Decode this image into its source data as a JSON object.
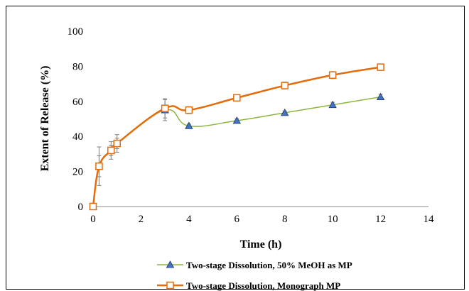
{
  "chart_data": {
    "type": "line",
    "xlabel": "Time (h)",
    "ylabel": "Extent of Release (%)",
    "xlim": [
      0,
      14
    ],
    "ylim": [
      0,
      100
    ],
    "xticks": [
      0,
      2,
      4,
      6,
      8,
      10,
      12,
      14
    ],
    "yticks": [
      0,
      20,
      40,
      60,
      80,
      100
    ],
    "grid": false,
    "legend": "bottom",
    "series": [
      {
        "name": "Two-stage Dissolution, 50% MeOH as MP",
        "color": "#8db542",
        "marker": "triangle",
        "marker_color": "#4472c4",
        "x": [
          0,
          0.25,
          0.75,
          1,
          3,
          4,
          6,
          8,
          10,
          12
        ],
        "y": [
          0,
          23,
          32,
          36,
          55,
          46,
          49,
          53.5,
          58,
          62.5
        ],
        "error": [
          0,
          6,
          3,
          3,
          6,
          1,
          1,
          1,
          1.5,
          1.5
        ]
      },
      {
        "name": "Two-stage Dissolution, Monograph MP",
        "color": "#e46c0a",
        "marker": "square",
        "marker_color": "#e46c0a",
        "x": [
          0,
          0.25,
          0.75,
          1,
          3,
          4,
          6,
          8,
          10,
          12
        ],
        "y": [
          0,
          23,
          32,
          36,
          56,
          55,
          62,
          69,
          75,
          79.5
        ],
        "error": [
          0,
          11,
          5,
          5,
          5.5,
          2,
          1,
          2,
          2,
          1.5
        ]
      }
    ]
  }
}
